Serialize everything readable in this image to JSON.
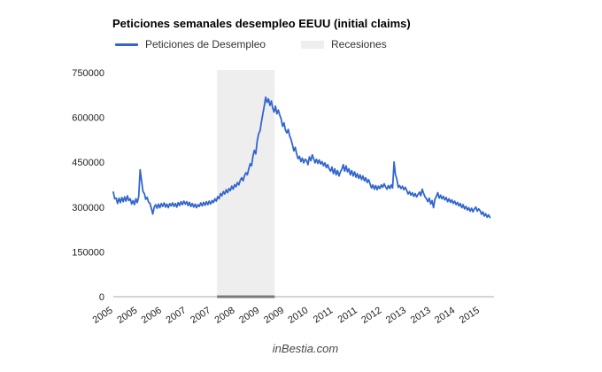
{
  "chart": {
    "title": "Peticiones semanales desempleo EEUU (initial claims)",
    "legend_claims": "Peticiones de Desempleo",
    "legend_recessions": "Recesiones",
    "watermark": "inBestia.com",
    "background_color": "#ffffff",
    "title_color": "#000000",
    "axis_label_color": "#222222",
    "axis_line_color": "#c6c6c6"
  },
  "chart_data": {
    "type": "line",
    "title": "Peticiones semanales desempleo EEUU (initial claims)",
    "xlabel": "",
    "ylabel": "",
    "grid": false,
    "legend_position": "top",
    "xlim": [
      2005,
      2015.38
    ],
    "ylim": [
      0,
      750000
    ],
    "y_ticks": [
      {
        "value": 0,
        "label": "0"
      },
      {
        "value": 150000,
        "label": "150000"
      },
      {
        "value": 300000,
        "label": "300000"
      },
      {
        "value": 450000,
        "label": "450000"
      },
      {
        "value": 600000,
        "label": "600000"
      },
      {
        "value": 750000,
        "label": "750000"
      }
    ],
    "x_ticks": [
      {
        "value": 2005.0,
        "label": "2005"
      },
      {
        "value": 2005.67,
        "label": "2005"
      },
      {
        "value": 2006.33,
        "label": "2006"
      },
      {
        "value": 2007.0,
        "label": "2007"
      },
      {
        "value": 2007.67,
        "label": "2007"
      },
      {
        "value": 2008.33,
        "label": "2008"
      },
      {
        "value": 2009.0,
        "label": "2009"
      },
      {
        "value": 2009.67,
        "label": "2009"
      },
      {
        "value": 2010.33,
        "label": "2010"
      },
      {
        "value": 2011.0,
        "label": "2011"
      },
      {
        "value": 2011.67,
        "label": "2011"
      },
      {
        "value": 2012.33,
        "label": "2012"
      },
      {
        "value": 2013.0,
        "label": "2013"
      },
      {
        "value": 2013.67,
        "label": "2013"
      },
      {
        "value": 2014.33,
        "label": "2014"
      },
      {
        "value": 2015.0,
        "label": "2015"
      }
    ],
    "bands": [
      {
        "name": "Recesiones",
        "x_start": 2007.83,
        "x_end": 2009.4,
        "color": "#eeeeee",
        "baseline_color": "#7a7a7a"
      }
    ],
    "series": [
      {
        "name": "Peticiones de Desempleo",
        "color": "#3366cc",
        "unit": "weekly initial claims",
        "value_scale": 1000,
        "x_start": 2005.0,
        "x_step": 0.038462,
        "values_in_thousands": [
          350,
          328,
          330,
          312,
          330,
          315,
          332,
          318,
          334,
          320,
          338,
          322,
          328,
          310,
          322,
          308,
          328,
          315,
          336,
          425,
          388,
          352,
          345,
          326,
          333,
          317,
          312,
          295,
          277,
          300,
          308,
          296,
          310,
          298,
          312,
          302,
          314,
          300,
          310,
          298,
          312,
          304,
          314,
          302,
          312,
          300,
          315,
          305,
          318,
          308,
          320,
          310,
          318,
          305,
          316,
          302,
          312,
          300,
          310,
          298,
          308,
          302,
          314,
          304,
          316,
          306,
          318,
          308,
          320,
          310,
          322,
          315,
          328,
          320,
          335,
          328,
          345,
          338,
          352,
          344,
          358,
          348,
          362,
          355,
          370,
          360,
          375,
          368,
          382,
          374,
          390,
          398,
          388,
          405,
          415,
          408,
          428,
          445,
          438,
          470,
          490,
          478,
          520,
          545,
          555,
          585,
          612,
          638,
          668,
          650,
          662,
          640,
          655,
          632,
          618,
          638,
          612,
          625,
          608,
          595,
          570,
          582,
          558,
          548,
          560,
          538,
          526,
          508,
          488,
          500,
          478,
          462,
          470,
          452,
          464,
          448,
          460,
          456,
          442,
          468,
          455,
          475,
          462,
          448,
          460,
          446,
          458,
          444,
          452,
          438,
          448,
          432,
          442,
          428,
          420,
          434,
          412,
          428,
          408,
          422,
          404,
          418,
          426,
          442,
          420,
          438,
          418,
          428,
          408,
          422,
          404,
          418,
          400,
          412,
          396,
          408,
          392,
          404,
          388,
          398,
          382,
          392,
          378,
          364,
          374,
          360,
          372,
          358,
          370,
          362,
          374,
          366,
          378,
          368,
          360,
          372,
          362,
          374,
          364,
          451,
          408,
          393,
          366,
          372,
          362,
          370,
          358,
          366,
          356,
          344,
          352,
          340,
          348,
          336,
          345,
          334,
          342,
          350,
          338,
          360,
          346,
          334,
          328,
          318,
          330,
          310,
          322,
          298,
          326,
          336,
          348,
          330,
          340,
          328,
          336,
          324,
          332,
          318,
          328,
          316,
          324,
          312,
          320,
          308,
          316,
          304,
          312,
          298,
          308,
          294,
          302,
          290,
          298,
          286,
          296,
          284,
          294,
          300,
          286,
          294,
          288,
          276,
          284,
          270,
          278,
          266,
          274,
          265
        ]
      }
    ]
  }
}
